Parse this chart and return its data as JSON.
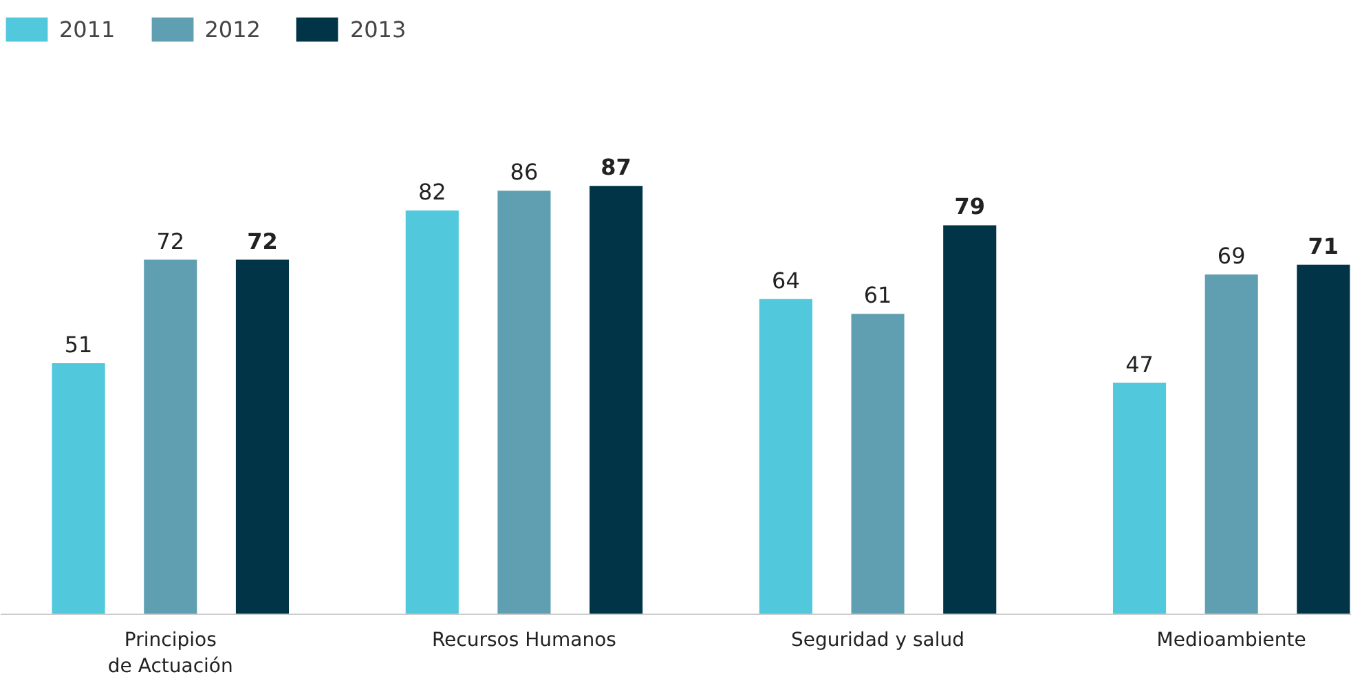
{
  "chart_data": {
    "type": "bar",
    "categories": [
      "Principios\nde Actuación",
      "Recursos Humanos",
      "Seguridad y salud",
      "Medioambiente"
    ],
    "series": [
      {
        "name": "2011",
        "color": "#52c8dc",
        "values": [
          51,
          82,
          64,
          47
        ]
      },
      {
        "name": "2012",
        "color": "#609fb1",
        "values": [
          72,
          86,
          61,
          69
        ]
      },
      {
        "name": "2013",
        "color": "#023447",
        "values": [
          72,
          87,
          79,
          71
        ]
      }
    ],
    "data_labels": true,
    "legend": "top left"
  }
}
